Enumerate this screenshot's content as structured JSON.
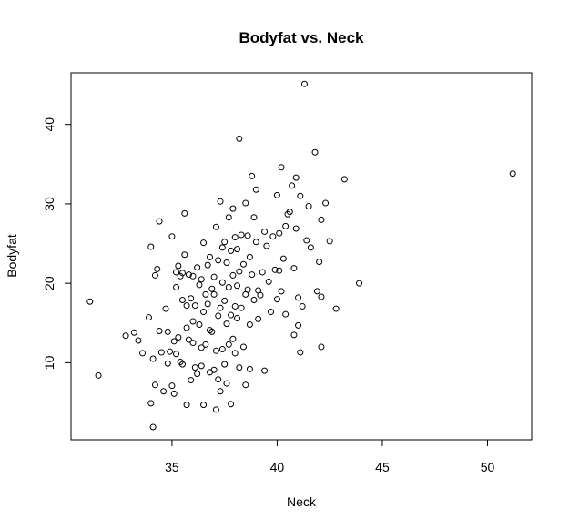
{
  "chart_data": {
    "type": "scatter",
    "title": "Bodyfat vs. Neck",
    "xlabel": "Neck",
    "ylabel": "Bodyfat",
    "xlim": [
      30.2,
      52.1
    ],
    "ylim": [
      0.3,
      46.5
    ],
    "x_ticks": [
      35,
      40,
      45,
      50
    ],
    "y_ticks": [
      10,
      20,
      30,
      40
    ],
    "grid": false,
    "legend": "none",
    "marker_color": "#000000",
    "x": [
      31.1,
      31.5,
      32.8,
      33.2,
      33.4,
      33.6,
      33.9,
      34.0,
      34.0,
      34.1,
      34.1,
      34.2,
      34.2,
      34.3,
      34.4,
      34.4,
      34.5,
      34.6,
      34.7,
      34.8,
      34.8,
      34.9,
      35.0,
      35.0,
      35.1,
      35.1,
      35.2,
      35.2,
      35.2,
      35.3,
      35.3,
      35.4,
      35.4,
      35.5,
      35.5,
      35.5,
      35.6,
      35.6,
      35.7,
      35.7,
      35.7,
      35.8,
      35.8,
      35.9,
      35.9,
      36.0,
      36.0,
      36.0,
      36.1,
      36.1,
      36.2,
      36.2,
      36.3,
      36.3,
      36.4,
      36.4,
      36.4,
      36.5,
      36.5,
      36.5,
      36.6,
      36.6,
      36.7,
      36.7,
      36.8,
      36.8,
      36.8,
      36.9,
      36.9,
      37.0,
      37.0,
      37.0,
      37.1,
      37.1,
      37.1,
      37.2,
      37.2,
      37.2,
      37.3,
      37.3,
      37.3,
      37.4,
      37.4,
      37.4,
      37.5,
      37.5,
      37.5,
      37.6,
      37.6,
      37.6,
      37.7,
      37.7,
      37.7,
      37.8,
      37.8,
      37.8,
      37.9,
      37.9,
      37.9,
      38.0,
      38.0,
      38.0,
      38.1,
      38.1,
      38.1,
      38.2,
      38.2,
      38.2,
      38.3,
      38.3,
      38.4,
      38.4,
      38.5,
      38.5,
      38.5,
      38.6,
      38.6,
      38.7,
      38.7,
      38.7,
      38.8,
      38.8,
      38.9,
      38.9,
      39.0,
      39.0,
      39.1,
      39.1,
      39.2,
      39.3,
      39.4,
      39.4,
      39.5,
      39.6,
      39.7,
      39.8,
      39.9,
      40.0,
      40.0,
      40.1,
      40.1,
      40.2,
      40.2,
      40.3,
      40.4,
      40.4,
      40.5,
      40.6,
      40.7,
      40.8,
      40.8,
      40.9,
      40.9,
      41.0,
      41.0,
      41.1,
      41.1,
      41.2,
      41.3,
      41.4,
      41.5,
      41.6,
      41.8,
      41.9,
      42.0,
      42.1,
      42.1,
      42.1,
      42.3,
      42.5,
      42.8,
      43.2,
      43.9,
      51.2
    ],
    "y": [
      17.7,
      8.4,
      13.4,
      13.8,
      12.8,
      11.2,
      15.7,
      24.6,
      4.9,
      1.9,
      10.5,
      21.0,
      7.2,
      21.8,
      27.8,
      14.0,
      11.3,
      6.4,
      16.8,
      13.9,
      9.9,
      11.4,
      7.1,
      25.9,
      12.7,
      6.1,
      11.1,
      21.4,
      19.5,
      13.2,
      22.2,
      10.1,
      20.9,
      17.9,
      21.3,
      9.8,
      23.6,
      28.8,
      17.2,
      4.7,
      14.4,
      21.1,
      12.9,
      7.8,
      18.1,
      15.2,
      20.9,
      12.5,
      17.2,
      9.4,
      22.0,
      8.6,
      14.8,
      19.8,
      20.5,
      11.9,
      9.6,
      25.1,
      4.7,
      16.4,
      18.6,
      12.3,
      22.3,
      17.4,
      23.3,
      14.1,
      8.8,
      19.3,
      13.9,
      18.6,
      20.8,
      9.1,
      27.1,
      4.1,
      11.5,
      22.9,
      7.9,
      15.9,
      30.3,
      16.9,
      6.4,
      24.5,
      11.7,
      20.1,
      25.2,
      17.8,
      9.8,
      22.6,
      14.9,
      7.4,
      28.3,
      12.3,
      19.5,
      24.1,
      16.0,
      4.8,
      29.4,
      21.0,
      13.0,
      25.8,
      17.1,
      11.2,
      24.3,
      19.7,
      15.6,
      38.2,
      21.5,
      9.4,
      26.1,
      16.9,
      22.4,
      12.0,
      30.1,
      18.6,
      7.2,
      26.0,
      19.2,
      23.3,
      14.8,
      9.2,
      33.5,
      21.1,
      28.3,
      17.9,
      31.8,
      25.2,
      19.1,
      15.5,
      18.5,
      21.4,
      26.5,
      9.0,
      24.7,
      20.2,
      16.4,
      25.9,
      21.7,
      31.1,
      18.0,
      26.3,
      21.6,
      34.6,
      19.0,
      23.1,
      27.2,
      16.1,
      28.7,
      29.0,
      32.3,
      21.9,
      13.5,
      26.9,
      33.3,
      18.2,
      14.7,
      31.0,
      11.3,
      17.1,
      45.1,
      25.4,
      29.7,
      24.5,
      36.5,
      19.0,
      22.7,
      28.0,
      18.3,
      12.0,
      30.1,
      25.3,
      16.8,
      33.1,
      20.0,
      33.8
    ]
  }
}
